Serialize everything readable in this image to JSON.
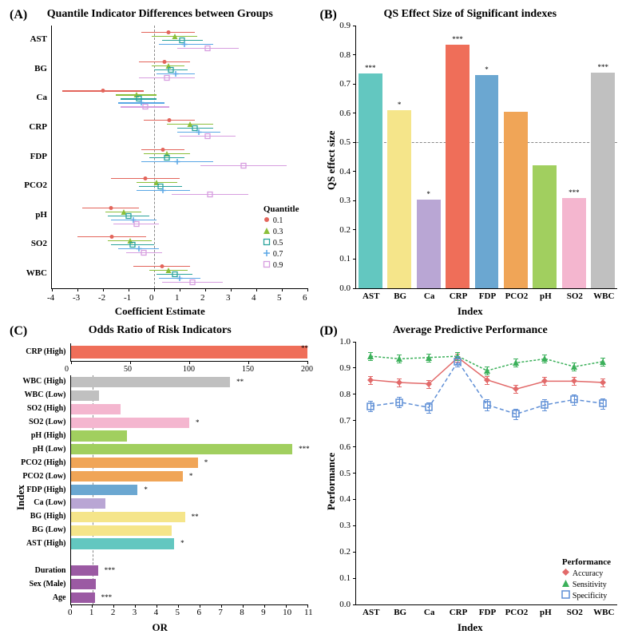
{
  "colors": {
    "q01": "#e3655b",
    "q03": "#8bbf3a",
    "q05": "#2aa39c",
    "q07": "#5aa7e6",
    "q09": "#d79ee0",
    "AST": "#63c7c0",
    "BG": "#f5e58a",
    "Ca": "#b9a6d4",
    "CRP": "#ef6e59",
    "FDP": "#6ba7d1",
    "PCO2": "#f0a557",
    "pH": "#a1cf5f",
    "SO2": "#f4b6cf",
    "WBC": "#c0c0c0",
    "Duration": "#9b5aa3",
    "Sex": "#9b5aa3",
    "Age": "#9b5aa3",
    "accuracy": "#e26a6a",
    "sensitivity": "#3bb05a",
    "specificity": "#5f8fd6",
    "grid": "#e8e8e8"
  },
  "panelA": {
    "label": "(A)",
    "title": "Quantile Indicator Differences between Groups",
    "xlabel": "Coefficient Estimate",
    "categories": [
      "AST",
      "BG",
      "Ca",
      "CRP",
      "FDP",
      "PCO2",
      "pH",
      "SO2",
      "WBC"
    ],
    "xlim": [
      -4,
      6
    ],
    "xticks": [
      -4,
      -3,
      -2,
      -1,
      0,
      1,
      2,
      3,
      4,
      5,
      6
    ],
    "quantiles": [
      "0.1",
      "0.3",
      "0.5",
      "0.7",
      "0.9"
    ],
    "data": {
      "AST": [
        {
          "q": 0.1,
          "v": 0.55,
          "lo": -0.5,
          "hi": 1.6
        },
        {
          "q": 0.3,
          "v": 0.8,
          "lo": -0.1,
          "hi": 1.7
        },
        {
          "q": 0.5,
          "v": 1.1,
          "lo": 0.3,
          "hi": 1.9
        },
        {
          "q": 0.7,
          "v": 1.2,
          "lo": 0.2,
          "hi": 2.3
        },
        {
          "q": 0.9,
          "v": 2.1,
          "lo": 0.9,
          "hi": 3.3
        }
      ],
      "BG": [
        {
          "q": 0.1,
          "v": 0.4,
          "lo": -0.6,
          "hi": 1.4
        },
        {
          "q": 0.3,
          "v": 0.55,
          "lo": -0.1,
          "hi": 1.2
        },
        {
          "q": 0.5,
          "v": 0.65,
          "lo": 0.0,
          "hi": 1.3
        },
        {
          "q": 0.7,
          "v": 0.85,
          "lo": 0.1,
          "hi": 1.6
        },
        {
          "q": 0.9,
          "v": 0.5,
          "lo": -0.6,
          "hi": 1.6
        }
      ],
      "Ca": [
        {
          "q": 0.1,
          "v": -2.0,
          "lo": -3.6,
          "hi": -0.4
        },
        {
          "q": 0.3,
          "v": -0.7,
          "lo": -1.5,
          "hi": 0.1
        },
        {
          "q": 0.5,
          "v": -0.6,
          "lo": -1.3,
          "hi": 0.1
        },
        {
          "q": 0.7,
          "v": -0.5,
          "lo": -1.4,
          "hi": 0.4
        },
        {
          "q": 0.9,
          "v": -0.35,
          "lo": -1.3,
          "hi": 0.6
        }
      ],
      "CRP": [
        {
          "q": 0.1,
          "v": 0.6,
          "lo": -0.4,
          "hi": 1.6
        },
        {
          "q": 0.3,
          "v": 1.4,
          "lo": 0.5,
          "hi": 2.3
        },
        {
          "q": 0.5,
          "v": 1.6,
          "lo": 0.9,
          "hi": 2.3
        },
        {
          "q": 0.7,
          "v": 1.75,
          "lo": 0.9,
          "hi": 2.6
        },
        {
          "q": 0.9,
          "v": 2.1,
          "lo": 1.0,
          "hi": 3.2
        }
      ],
      "FDP": [
        {
          "q": 0.1,
          "v": 0.35,
          "lo": -0.5,
          "hi": 1.2
        },
        {
          "q": 0.3,
          "v": 0.5,
          "lo": -0.4,
          "hi": 1.4
        },
        {
          "q": 0.5,
          "v": 0.5,
          "lo": -0.2,
          "hi": 1.2
        },
        {
          "q": 0.7,
          "v": 0.9,
          "lo": -0.5,
          "hi": 2.3
        },
        {
          "q": 0.9,
          "v": 3.5,
          "lo": 1.8,
          "hi": 5.2
        }
      ],
      "PCO2": [
        {
          "q": 0.1,
          "v": -0.35,
          "lo": -1.7,
          "hi": 1.0
        },
        {
          "q": 0.3,
          "v": 0.1,
          "lo": -0.7,
          "hi": 0.9
        },
        {
          "q": 0.5,
          "v": 0.25,
          "lo": -0.6,
          "hi": 1.1
        },
        {
          "q": 0.7,
          "v": 0.35,
          "lo": -0.7,
          "hi": 1.4
        },
        {
          "q": 0.9,
          "v": 2.2,
          "lo": 0.7,
          "hi": 3.7
        }
      ],
      "pH": [
        {
          "q": 0.1,
          "v": -1.7,
          "lo": -2.8,
          "hi": -0.6
        },
        {
          "q": 0.3,
          "v": -1.2,
          "lo": -1.9,
          "hi": -0.5
        },
        {
          "q": 0.5,
          "v": -1.0,
          "lo": -1.8,
          "hi": -0.2
        },
        {
          "q": 0.7,
          "v": -0.8,
          "lo": -1.7,
          "hi": 0.1
        },
        {
          "q": 0.9,
          "v": -0.7,
          "lo": -1.6,
          "hi": 0.2
        }
      ],
      "SO2": [
        {
          "q": 0.1,
          "v": -1.65,
          "lo": -3.0,
          "hi": -0.3
        },
        {
          "q": 0.3,
          "v": -0.95,
          "lo": -1.8,
          "hi": -0.1
        },
        {
          "q": 0.5,
          "v": -0.85,
          "lo": -1.7,
          "hi": 0.0
        },
        {
          "q": 0.7,
          "v": -0.6,
          "lo": -1.4,
          "hi": 0.2
        },
        {
          "q": 0.9,
          "v": -0.4,
          "lo": -1.1,
          "hi": 0.3
        }
      ],
      "WBC": [
        {
          "q": 0.1,
          "v": 0.3,
          "lo": -0.8,
          "hi": 1.4
        },
        {
          "q": 0.3,
          "v": 0.55,
          "lo": -0.2,
          "hi": 1.3
        },
        {
          "q": 0.5,
          "v": 0.8,
          "lo": 0.1,
          "hi": 1.5
        },
        {
          "q": 0.7,
          "v": 1.0,
          "lo": 0.2,
          "hi": 1.8
        },
        {
          "q": 0.9,
          "v": 1.5,
          "lo": 0.3,
          "hi": 2.7
        }
      ]
    }
  },
  "panelB": {
    "label": "(B)",
    "title": "QS Effect Size of Significant indexes",
    "xlabel": "Index",
    "ylabel": "QS effect size",
    "ylim": [
      0,
      0.9
    ],
    "yticks": [
      0.0,
      0.1,
      0.2,
      0.3,
      0.4,
      0.5,
      0.6,
      0.7,
      0.8,
      0.9
    ],
    "ref": 0.5,
    "bars": [
      {
        "name": "AST",
        "v": 0.735,
        "sig": "***"
      },
      {
        "name": "BG",
        "v": 0.61,
        "sig": "*"
      },
      {
        "name": "Ca",
        "v": 0.305,
        "sig": "*"
      },
      {
        "name": "CRP",
        "v": 0.835,
        "sig": "***"
      },
      {
        "name": "FDP",
        "v": 0.73,
        "sig": "*"
      },
      {
        "name": "PCO2",
        "v": 0.605,
        "sig": ""
      },
      {
        "name": "pH",
        "v": 0.42,
        "sig": ""
      },
      {
        "name": "SO2",
        "v": 0.31,
        "sig": "***"
      },
      {
        "name": "WBC",
        "v": 0.74,
        "sig": "***"
      }
    ]
  },
  "panelC": {
    "label": "(C)",
    "title": "Odds Ratio of Risk Indicators",
    "xlabel": "OR",
    "ylabel": "Index",
    "top": {
      "name": "CRP (High)",
      "v": 200,
      "xlim": [
        0,
        200
      ],
      "xticks": [
        0,
        50,
        100,
        150,
        200
      ],
      "sig": "**",
      "colorKey": "CRP"
    },
    "xlim": [
      0,
      11
    ],
    "xticks": [
      0,
      1,
      2,
      3,
      4,
      5,
      6,
      7,
      8,
      9,
      10,
      11
    ],
    "ref": 1,
    "bars": [
      {
        "name": "WBC (High)",
        "v": 7.4,
        "sig": "**",
        "colorKey": "WBC"
      },
      {
        "name": "WBC (Low)",
        "v": 1.3,
        "sig": "",
        "colorKey": "WBC"
      },
      {
        "name": "SO2 (High)",
        "v": 2.3,
        "sig": "",
        "colorKey": "SO2"
      },
      {
        "name": "SO2 (Low)",
        "v": 5.5,
        "sig": "*",
        "colorKey": "SO2"
      },
      {
        "name": "pH (High)",
        "v": 2.6,
        "sig": "",
        "colorKey": "pH"
      },
      {
        "name": "pH (Low)",
        "v": 10.3,
        "sig": "***",
        "colorKey": "pH"
      },
      {
        "name": "PCO2 (High)",
        "v": 5.9,
        "sig": "*",
        "colorKey": "PCO2"
      },
      {
        "name": "PCO2 (Low)",
        "v": 5.2,
        "sig": "*",
        "colorKey": "PCO2"
      },
      {
        "name": "FDP (High)",
        "v": 3.1,
        "sig": "*",
        "colorKey": "FDP"
      },
      {
        "name": "Ca (Low)",
        "v": 1.6,
        "sig": "",
        "colorKey": "Ca"
      },
      {
        "name": "BG (High)",
        "v": 5.3,
        "sig": "**",
        "colorKey": "BG"
      },
      {
        "name": "BG (Low)",
        "v": 4.7,
        "sig": "",
        "colorKey": "BG"
      },
      {
        "name": "AST (High)",
        "v": 4.8,
        "sig": "*",
        "colorKey": "AST"
      },
      {
        "name": "__gap__"
      },
      {
        "name": "Duration",
        "v": 1.25,
        "sig": "***",
        "colorKey": "Duration"
      },
      {
        "name": "Sex (Male)",
        "v": 1.15,
        "sig": "",
        "colorKey": "Sex"
      },
      {
        "name": "Age",
        "v": 1.1,
        "sig": "***",
        "colorKey": "Age"
      }
    ]
  },
  "panelD": {
    "label": "(D)",
    "title": "Average Predictive Performance",
    "xlabel": "Index",
    "ylabel": "Performance",
    "xcats": [
      "AST",
      "BG",
      "Ca",
      "CRP",
      "FDP",
      "PCO2",
      "pH",
      "SO2",
      "WBC"
    ],
    "ylim": [
      0,
      1
    ],
    "yticks": [
      0.0,
      0.1,
      0.2,
      0.3,
      0.4,
      0.5,
      0.6,
      0.7,
      0.8,
      0.9,
      1.0
    ],
    "series": {
      "Accuracy": {
        "colorKey": "accuracy",
        "dash": "",
        "marker": "diamond",
        "vals": [
          0.855,
          0.845,
          0.84,
          0.94,
          0.855,
          0.82,
          0.85,
          0.85,
          0.845
        ],
        "err": 0.015
      },
      "Sensitivity": {
        "colorKey": "sensitivity",
        "dash": "3,2",
        "marker": "triangle",
        "vals": [
          0.945,
          0.935,
          0.94,
          0.945,
          0.89,
          0.92,
          0.935,
          0.905,
          0.925
        ],
        "err": 0.015
      },
      "Specificity": {
        "colorKey": "specificity",
        "dash": "5,3",
        "marker": "square",
        "vals": [
          0.755,
          0.77,
          0.75,
          0.925,
          0.76,
          0.725,
          0.76,
          0.78,
          0.765
        ],
        "err": 0.02
      }
    },
    "legend": [
      "Accuracy",
      "Sensitivity",
      "Specificity"
    ]
  }
}
